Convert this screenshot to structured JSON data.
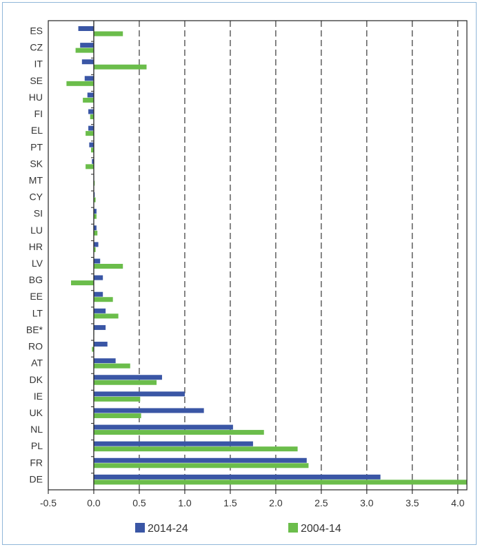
{
  "chart_data": {
    "type": "bar",
    "orientation": "horizontal",
    "title": "",
    "xlabel": "",
    "ylabel": "",
    "xlim": [
      -0.5,
      4.1
    ],
    "xticks": [
      -0.5,
      0.0,
      0.5,
      1.0,
      1.5,
      2.0,
      2.5,
      3.0,
      3.5,
      4.0
    ],
    "xtick_labels": [
      "-0.5",
      "0.0",
      "0.5",
      "1.0",
      "1.5",
      "2.0",
      "2.5",
      "3.0",
      "3.5",
      "4.0"
    ],
    "grid": "vertical dashed",
    "legend_position": "bottom",
    "categories": [
      "ES",
      "CZ",
      "IT",
      "SE",
      "HU",
      "FI",
      "EL",
      "PT",
      "SK",
      "MT",
      "CY",
      "SI",
      "LU",
      "HR",
      "LV",
      "BG",
      "EE",
      "LT",
      "BE*",
      "RO",
      "AT",
      "DK",
      "IE",
      "UK",
      "NL",
      "PL",
      "FR",
      "DE"
    ],
    "series": [
      {
        "name": "2014-24",
        "color": "#3a56a5",
        "values": [
          -0.17,
          -0.15,
          -0.13,
          -0.1,
          -0.07,
          -0.06,
          -0.06,
          -0.05,
          -0.02,
          0.0,
          0.01,
          0.03,
          0.03,
          0.05,
          0.07,
          0.1,
          0.1,
          0.13,
          0.13,
          0.15,
          0.24,
          0.75,
          1.0,
          1.21,
          1.53,
          1.75,
          2.34,
          3.15
        ]
      },
      {
        "name": "2004-14",
        "color": "#6bbd4b",
        "values": [
          0.32,
          -0.2,
          0.58,
          -0.3,
          -0.12,
          -0.04,
          -0.09,
          -0.03,
          -0.09,
          0.01,
          0.02,
          0.03,
          0.04,
          0.02,
          0.32,
          -0.25,
          0.21,
          0.27,
          0.0,
          -0.02,
          0.4,
          0.69,
          0.51,
          0.52,
          1.87,
          2.24,
          2.36,
          4.1
        ]
      }
    ]
  }
}
